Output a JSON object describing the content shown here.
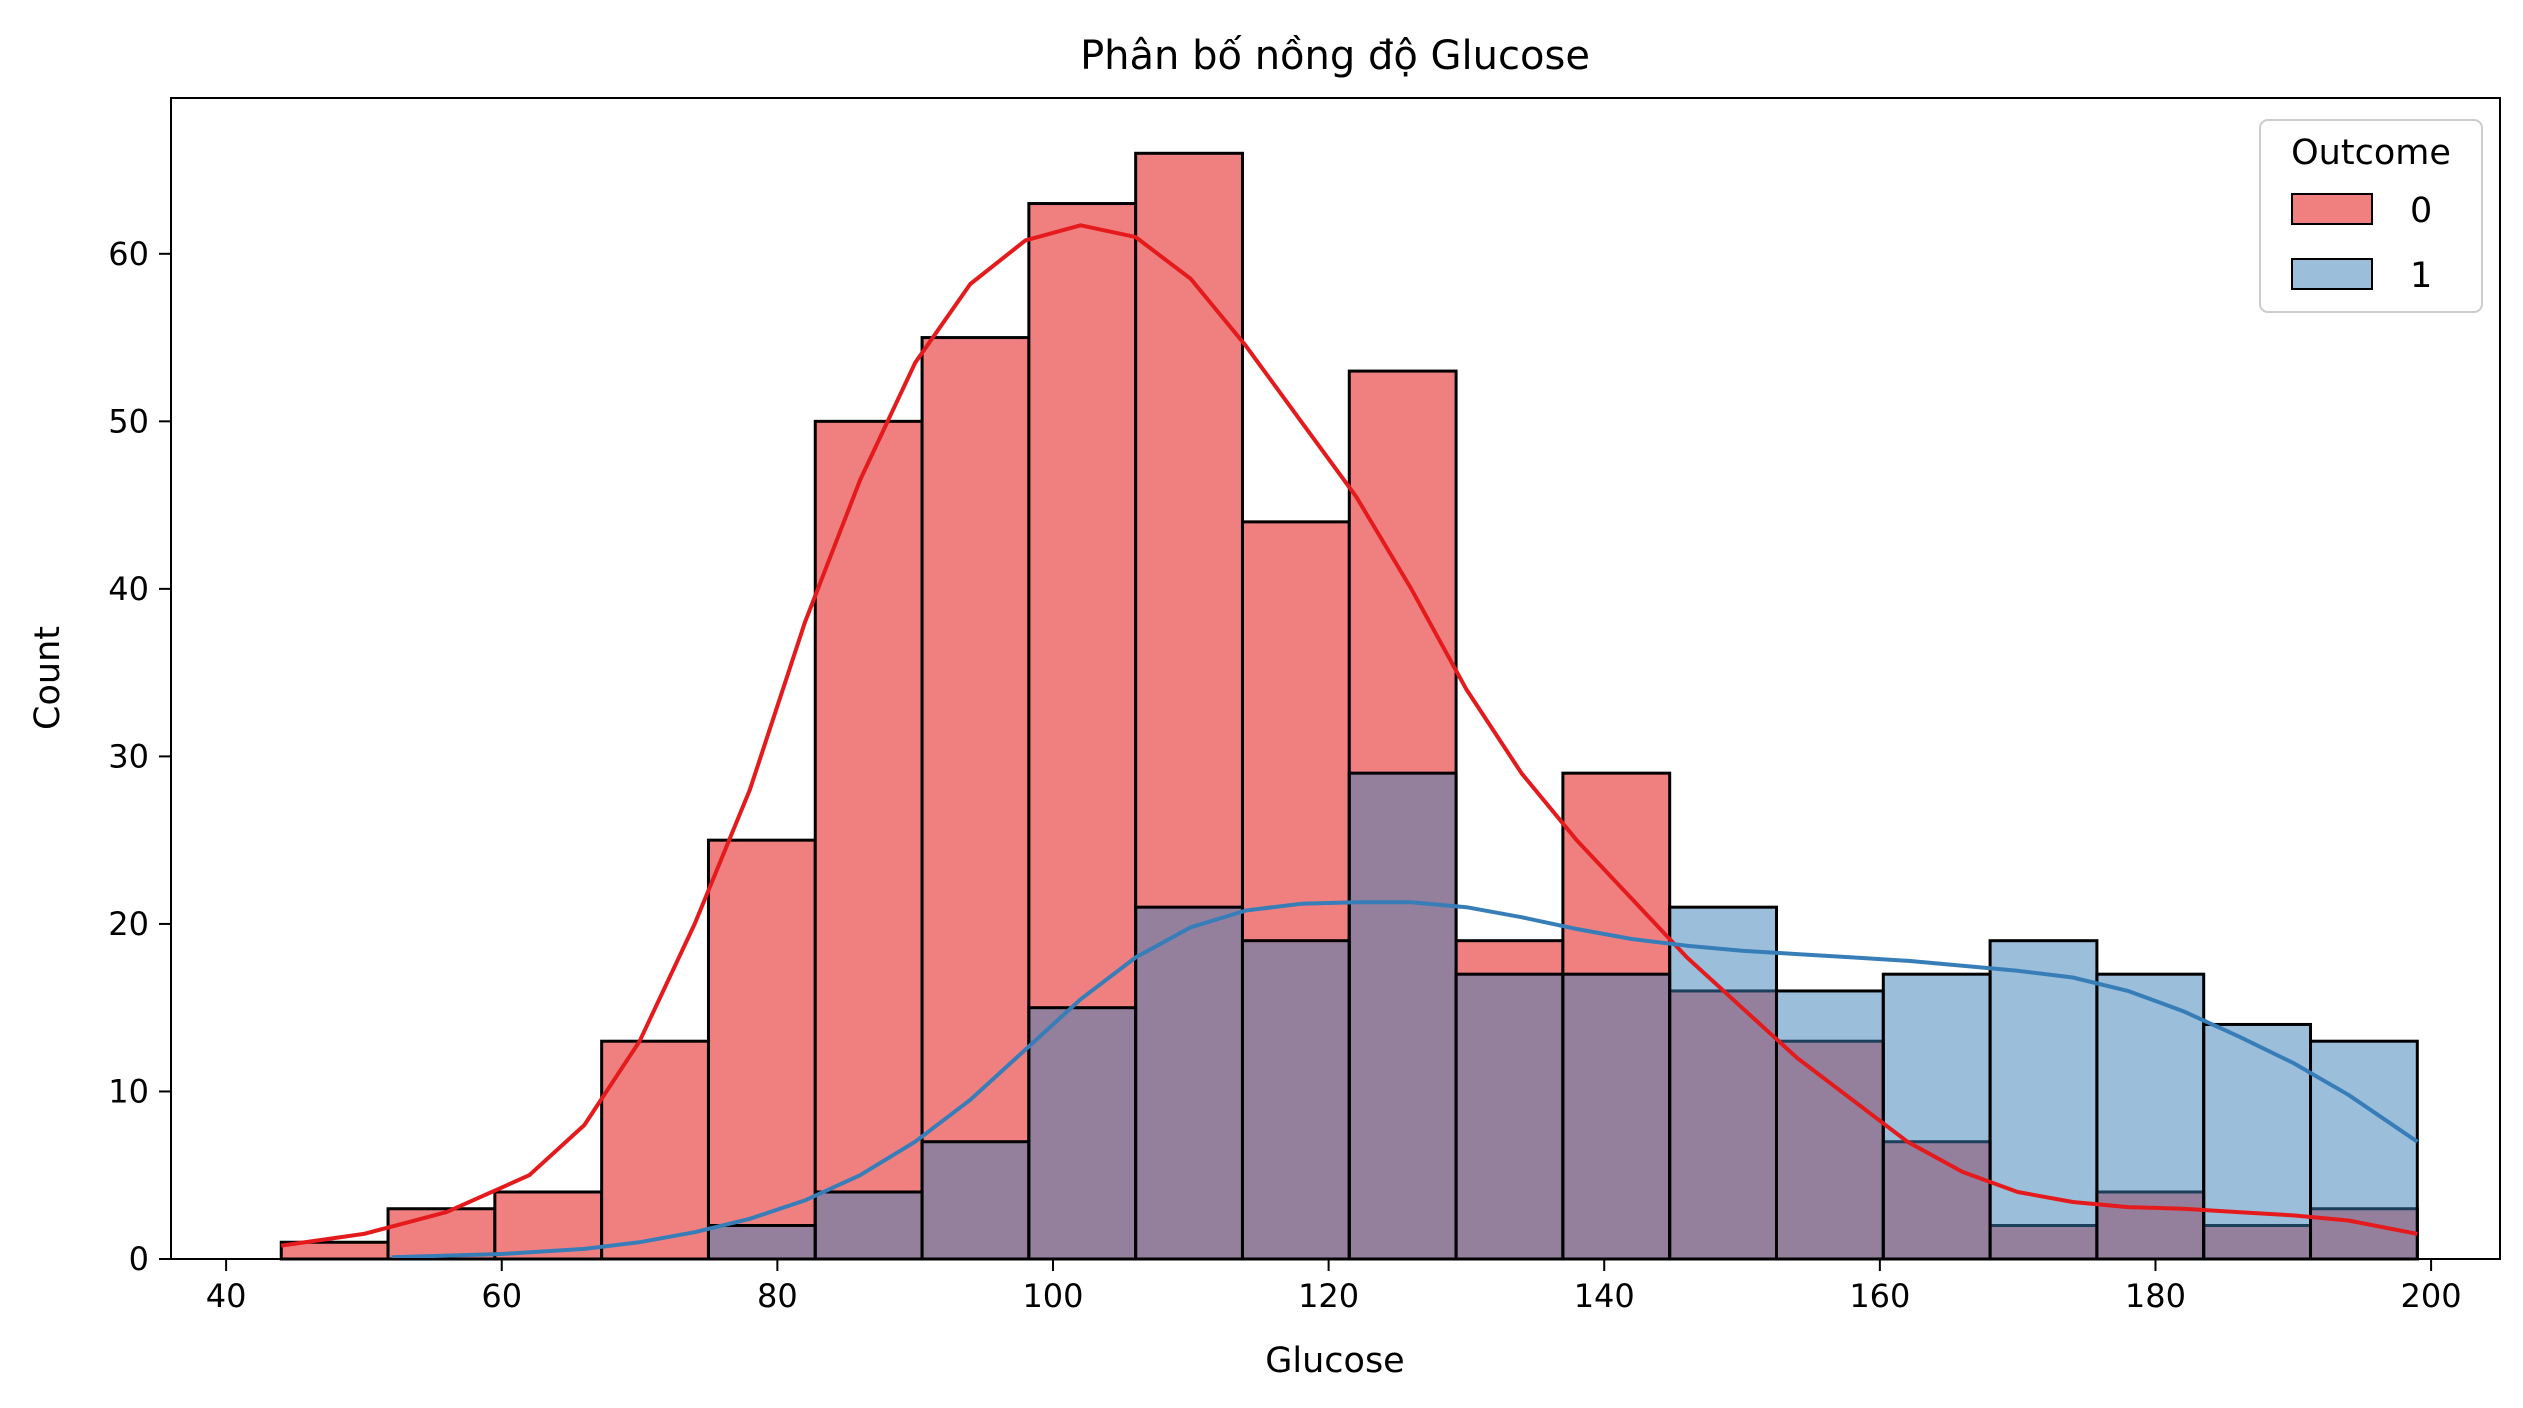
{
  "chart_data": {
    "type": "bar",
    "title": "Phân bố nồng độ Glucose",
    "xlabel": "Glucose",
    "ylabel": "Count",
    "xlim": [
      36,
      205
    ],
    "ylim": [
      0,
      69.3
    ],
    "xticks": [
      40,
      60,
      80,
      100,
      120,
      140,
      160,
      180,
      200
    ],
    "yticks": [
      0,
      10,
      20,
      30,
      40,
      50,
      60
    ],
    "bin_edges": [
      44,
      51.75,
      59.5,
      67.25,
      75,
      82.75,
      90.5,
      98.25,
      106,
      113.75,
      121.5,
      129.25,
      137,
      144.75,
      152.5,
      160.25,
      168,
      175.75,
      183.5,
      191.25,
      199
    ],
    "grid": false,
    "legend": {
      "title": "Outcome",
      "position": "top-right"
    },
    "series": [
      {
        "name": "0",
        "color": "#e41a1c",
        "fill": "#f08080",
        "values": [
          1,
          3,
          4,
          13,
          25,
          50,
          55,
          63,
          66,
          44,
          53,
          19,
          29,
          16,
          13,
          7,
          2,
          4,
          2,
          3
        ],
        "kde": [
          [
            44,
            0.8
          ],
          [
            50,
            1.5
          ],
          [
            56,
            2.8
          ],
          [
            62,
            5
          ],
          [
            66,
            8
          ],
          [
            70,
            13
          ],
          [
            74,
            20
          ],
          [
            78,
            28
          ],
          [
            82,
            38
          ],
          [
            86,
            46.5
          ],
          [
            90,
            53.5
          ],
          [
            94,
            58.2
          ],
          [
            98,
            60.8
          ],
          [
            102,
            61.7
          ],
          [
            106,
            61
          ],
          [
            110,
            58.5
          ],
          [
            114,
            54.5
          ],
          [
            118,
            50
          ],
          [
            122,
            45.5
          ],
          [
            126,
            40
          ],
          [
            130,
            34
          ],
          [
            134,
            29
          ],
          [
            138,
            25
          ],
          [
            142,
            21.5
          ],
          [
            146,
            18
          ],
          [
            150,
            15
          ],
          [
            154,
            12
          ],
          [
            158,
            9.5
          ],
          [
            162,
            7
          ],
          [
            166,
            5.2
          ],
          [
            170,
            4
          ],
          [
            174,
            3.4
          ],
          [
            178,
            3.1
          ],
          [
            182,
            3
          ],
          [
            186,
            2.8
          ],
          [
            190,
            2.6
          ],
          [
            194,
            2.3
          ],
          [
            199,
            1.5
          ]
        ]
      },
      {
        "name": "1",
        "color": "#377eb8",
        "fill": "#9abedc",
        "values": [
          0,
          0,
          0,
          0,
          2,
          4,
          7,
          15,
          21,
          19,
          29,
          17,
          17,
          21,
          16,
          17,
          19,
          17,
          14,
          13
        ],
        "kde": [
          [
            52,
            0.1
          ],
          [
            60,
            0.3
          ],
          [
            66,
            0.6
          ],
          [
            70,
            1
          ],
          [
            74,
            1.6
          ],
          [
            78,
            2.4
          ],
          [
            82,
            3.5
          ],
          [
            86,
            5
          ],
          [
            90,
            7
          ],
          [
            94,
            9.5
          ],
          [
            98,
            12.5
          ],
          [
            102,
            15.5
          ],
          [
            106,
            18
          ],
          [
            110,
            19.8
          ],
          [
            114,
            20.8
          ],
          [
            118,
            21.2
          ],
          [
            122,
            21.3
          ],
          [
            126,
            21.3
          ],
          [
            130,
            21
          ],
          [
            134,
            20.4
          ],
          [
            138,
            19.7
          ],
          [
            142,
            19.1
          ],
          [
            146,
            18.7
          ],
          [
            150,
            18.4
          ],
          [
            154,
            18.2
          ],
          [
            158,
            18
          ],
          [
            162,
            17.8
          ],
          [
            166,
            17.5
          ],
          [
            170,
            17.2
          ],
          [
            174,
            16.8
          ],
          [
            178,
            16
          ],
          [
            182,
            14.8
          ],
          [
            186,
            13.3
          ],
          [
            190,
            11.7
          ],
          [
            194,
            9.8
          ],
          [
            199,
            7
          ]
        ]
      }
    ]
  }
}
